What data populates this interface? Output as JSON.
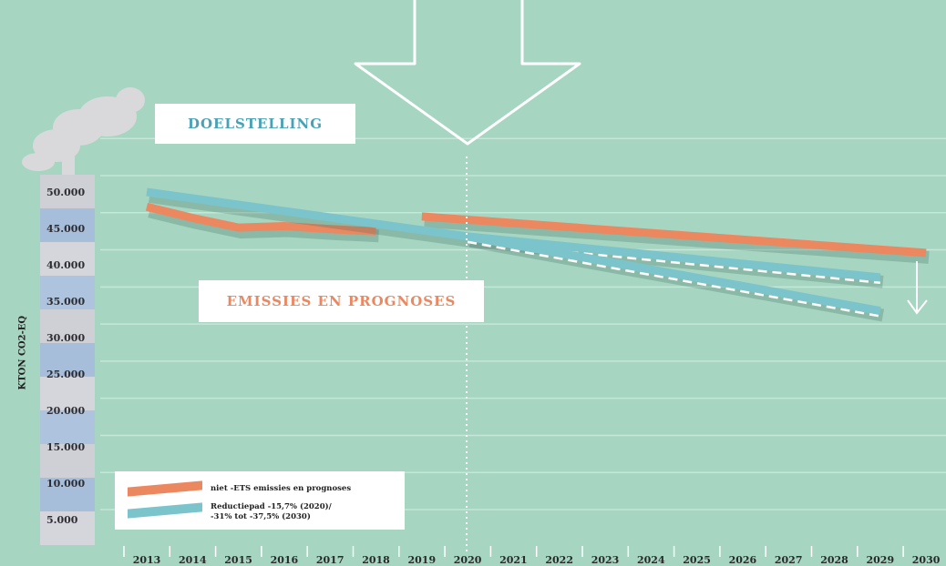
{
  "chart_data": {
    "type": "line",
    "ylabel": "KTON CO2-EQ",
    "y_tick_labels": [
      "50.000",
      "45.000",
      "40.000",
      "35.000",
      "30.000",
      "25.000",
      "20.000",
      "15.000",
      "10.000",
      "5.000"
    ],
    "ylim": [
      0,
      52500
    ],
    "categories": [
      "2013",
      "2014",
      "2015",
      "2016",
      "2017",
      "2018",
      "2019",
      "2020",
      "2021",
      "2022",
      "2023",
      "2024",
      "2025",
      "2026",
      "2027",
      "2028",
      "2029",
      "2030"
    ],
    "grid": true,
    "legend_position": "bottom-left",
    "annotations": {
      "target": "DOELSTELLING",
      "emissions": "EMISSIES EN PROGNOSES"
    },
    "series": [
      {
        "name": "niet -ETS emissies en prognoses",
        "color": "#ec8860",
        "points": [
          {
            "x": "2013",
            "y": 48000
          },
          {
            "x": "2014",
            "y": 46500
          },
          {
            "x": "2015",
            "y": 45200
          },
          {
            "x": "2016",
            "y": 45400
          },
          {
            "x": "2017",
            "y": 45000
          },
          {
            "x": "2018",
            "y": 44700
          }
        ]
      },
      {
        "name": "niet -ETS emissies en prognoses (prognose)",
        "color": "#ec8860",
        "points": [
          {
            "x": "2019",
            "y": 46700
          },
          {
            "x": "2030",
            "y": 41800
          }
        ]
      },
      {
        "name": "Reductiepad -15,7% (2020)/ -31% tot -37,5% (2030)",
        "color": "#7cc4cc",
        "points": [
          {
            "x": "2013",
            "y": 50000
          },
          {
            "x": "2020",
            "y": 44000
          },
          {
            "x": "2029",
            "y": 38500
          }
        ]
      },
      {
        "name": "Reductiepad -15,7% (2020)/ -31% tot -37,5% (2030) (lage variant)",
        "color": "#7cc4cc",
        "points": [
          {
            "x": "2020",
            "y": 44000
          },
          {
            "x": "2029",
            "y": 34000
          }
        ]
      }
    ],
    "legend": [
      {
        "label": "niet -ETS emissies en prognoses",
        "color": "#ec8860"
      },
      {
        "label": "Reductiepad -15,7% (2020)/\n-31% tot -37,5% (2030)",
        "color": "#7cc4cc"
      }
    ]
  }
}
